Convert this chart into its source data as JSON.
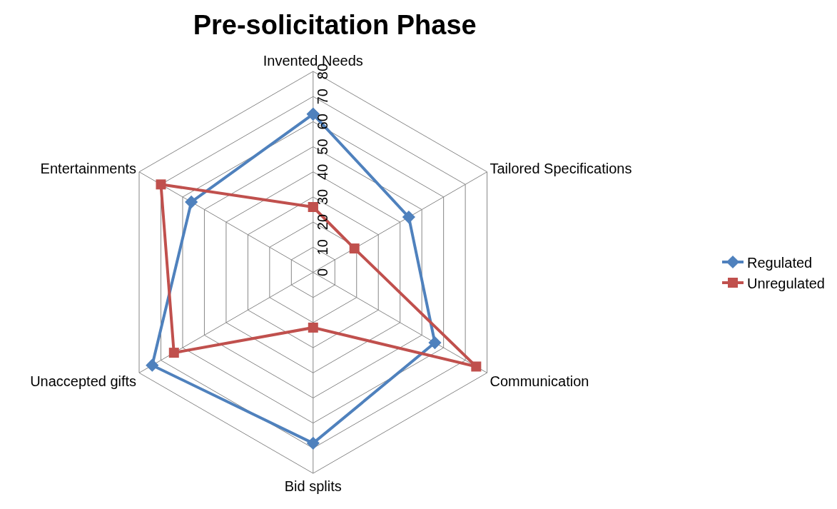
{
  "chart_data": {
    "type": "radar",
    "title": "Pre-solicitation Phase",
    "categories": [
      "Invented Needs",
      "Tailored Specifications",
      "Communication",
      "Bid splits",
      "Unaccepted gifts",
      "Entertainments"
    ],
    "series": [
      {
        "name": "Regulated",
        "color": "#4f81bd",
        "marker": "diamond",
        "values": [
          63,
          44,
          56,
          68,
          74,
          56
        ]
      },
      {
        "name": "Unregulated",
        "color": "#c0504d",
        "marker": "square",
        "values": [
          26,
          19,
          75,
          22,
          64,
          70
        ]
      }
    ],
    "ylim": [
      0,
      80
    ],
    "yticks": [
      0,
      10,
      20,
      30,
      40,
      50,
      60,
      70,
      80
    ],
    "grid": true,
    "legend": "right",
    "line_style": "solid"
  }
}
